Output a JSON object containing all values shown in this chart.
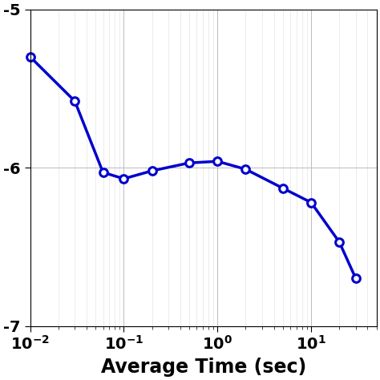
{
  "x": [
    0.01,
    0.03,
    0.06,
    0.1,
    0.2,
    0.5,
    1.0,
    2.0,
    5.0,
    10.0,
    20.0,
    30.0
  ],
  "y": [
    -5.3,
    -5.58,
    -6.03,
    -6.07,
    -6.02,
    -5.97,
    -5.96,
    -6.01,
    -6.13,
    -6.22,
    -6.47,
    -6.7
  ],
  "line_color": "#0000CC",
  "marker": "o",
  "marker_facecolor": "white",
  "marker_edgecolor": "#0000CC",
  "marker_size": 7,
  "marker_edgewidth": 2.2,
  "linewidth": 2.5,
  "xlabel": "Average Time (sec)",
  "xlabel_fontsize": 17,
  "xlim_log": [
    -2,
    1.7
  ],
  "ylim": [
    -7.0,
    -5.0
  ],
  "yticks": [
    -7,
    -6,
    -5
  ],
  "ytick_labels": [
    "-7",
    "-6",
    "-5"
  ],
  "grid_major_color": "#bbbbbb",
  "grid_minor_color": "#dddddd",
  "grid_major_linewidth": 0.7,
  "grid_minor_linewidth": 0.4,
  "background_color": "#ffffff",
  "tick_fontsize": 14
}
